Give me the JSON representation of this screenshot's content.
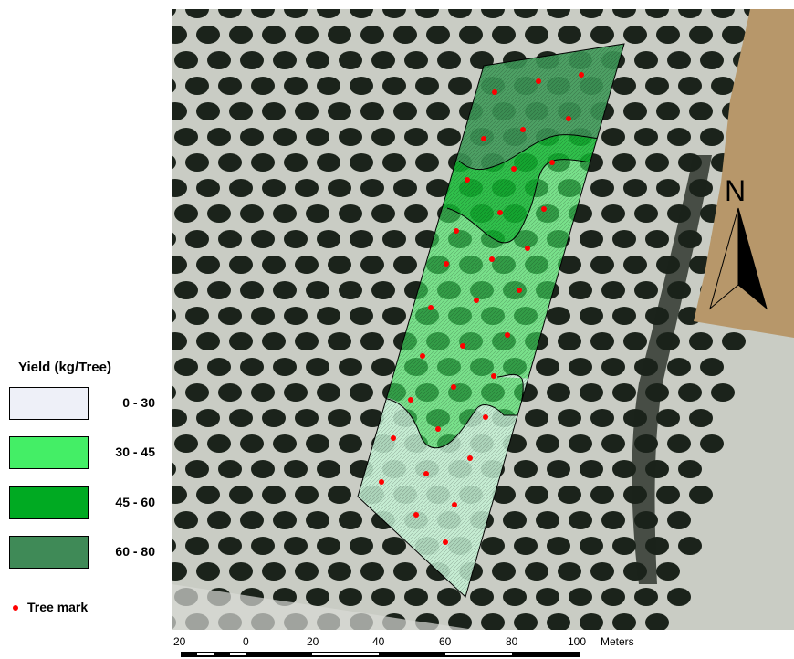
{
  "legend": {
    "title": "Yield  (kg/Tree)",
    "classes": [
      {
        "label": "0 - 30",
        "color": "#eef0f8"
      },
      {
        "label": "30 - 45",
        "color": "#44ee66"
      },
      {
        "label": "45 - 60",
        "color": "#00aa22"
      },
      {
        "label": "60 - 80",
        "color": "#3f8a57"
      }
    ],
    "tree_mark_label": "Tree mark",
    "tree_mark_color": "#ff0000"
  },
  "north_arrow": {
    "label": "N"
  },
  "scale_bar": {
    "ticks": [
      "20",
      "0",
      "20",
      "40",
      "60",
      "80",
      "100"
    ],
    "units": "Meters"
  },
  "colors": {
    "imagery_background": "#c9ccc4",
    "tree_canopy": "#1b231b",
    "bare_field": "#b7976a",
    "zone_outline": "#000000"
  }
}
